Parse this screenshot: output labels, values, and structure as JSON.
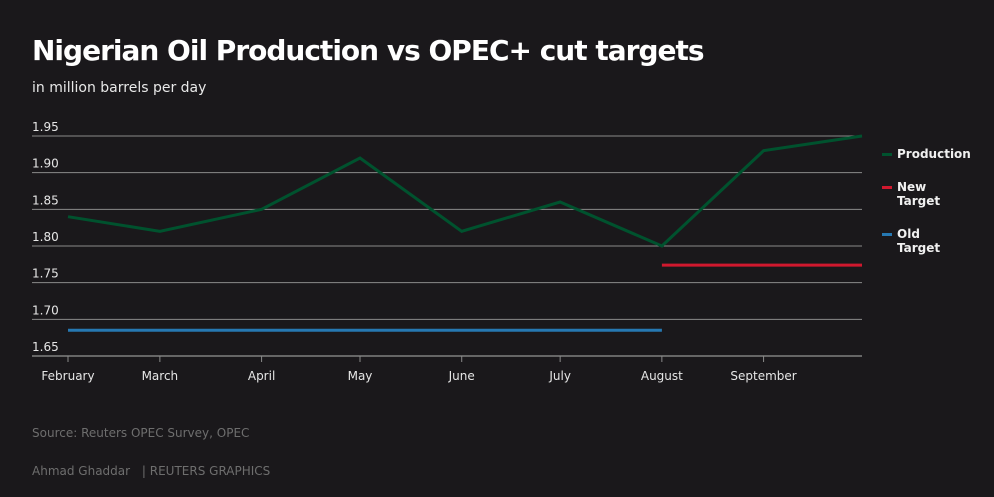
{
  "header": {
    "title": "Nigerian Oil Production vs OPEC+ cut targets",
    "subtitle": "in million barrels per day"
  },
  "footer": {
    "source": "Source: Reuters OPEC Survey, OPEC",
    "author": "Ahmad Ghaddar",
    "agency": "| REUTERS GRAPHICS"
  },
  "chart_data": {
    "type": "line",
    "title": "Nigerian Oil Production vs OPEC+ cut targets",
    "subtitle": "in million barrels per day",
    "x_ticks": [
      "February",
      "March",
      "April",
      "May",
      "June",
      "July",
      "August",
      "September"
    ],
    "y_ticks": [
      "1.95",
      "1.90",
      "1.85",
      "1.80",
      "1.75",
      "1.70",
      "1.65"
    ],
    "ylim": [
      1.65,
      1.95
    ],
    "xlim": [
      "February",
      "October"
    ],
    "grid": true,
    "legend_position": "right",
    "series": [
      {
        "name": "Production",
        "color": "#00522e",
        "x": [
          "February",
          "March",
          "April",
          "May",
          "June",
          "July",
          "August",
          "September",
          "October"
        ],
        "values": [
          1.84,
          1.82,
          1.85,
          1.92,
          1.82,
          1.86,
          1.8,
          1.93,
          1.95
        ]
      },
      {
        "name": "New Target",
        "color": "#d0182e",
        "x": [
          "August",
          "October"
        ],
        "values": [
          1.774,
          1.774
        ]
      },
      {
        "name": "Old Target",
        "color": "#2678b2",
        "x": [
          "February",
          "August"
        ],
        "values": [
          1.685,
          1.685
        ]
      }
    ]
  }
}
